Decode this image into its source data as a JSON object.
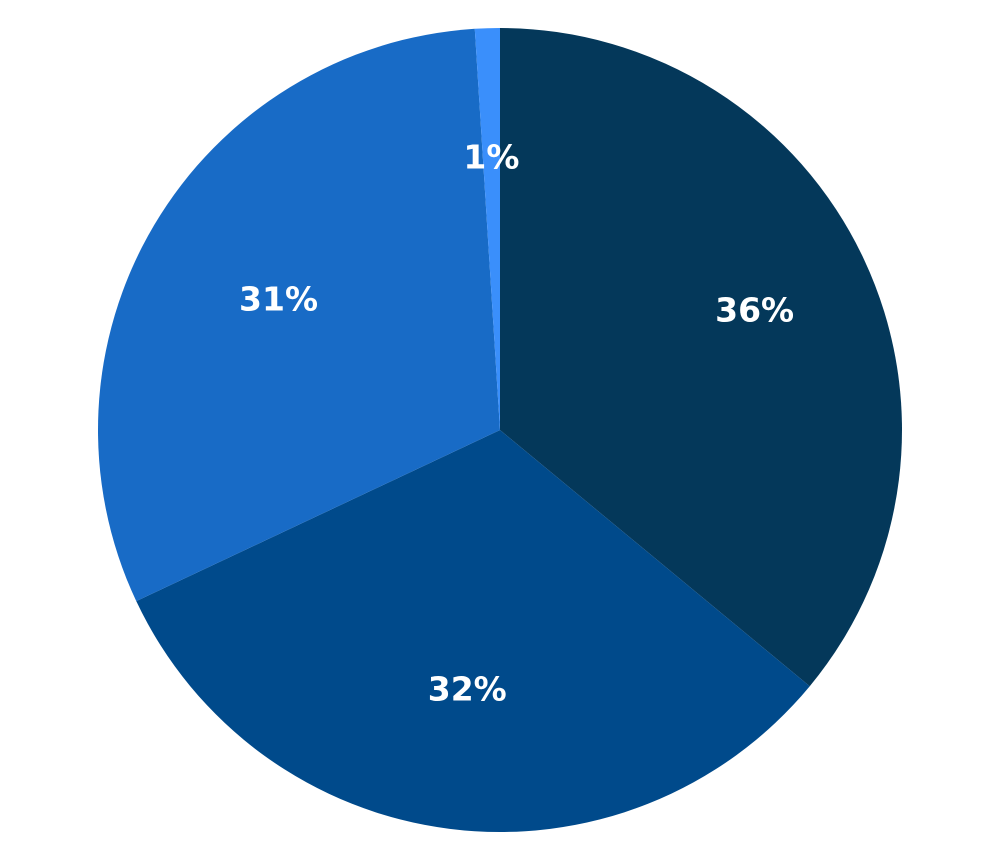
{
  "chart_data": {
    "type": "pie",
    "start_angle_deg": 0,
    "direction": "clockwise",
    "slices": [
      {
        "label": "36%",
        "value": 36,
        "color": "#04385a"
      },
      {
        "label": "32%",
        "value": 32,
        "color": "#004a8b"
      },
      {
        "label": "31%",
        "value": 31,
        "color": "#186bc6"
      },
      {
        "label": "1%",
        "value": 1,
        "color": "#3a8ffb"
      }
    ]
  }
}
